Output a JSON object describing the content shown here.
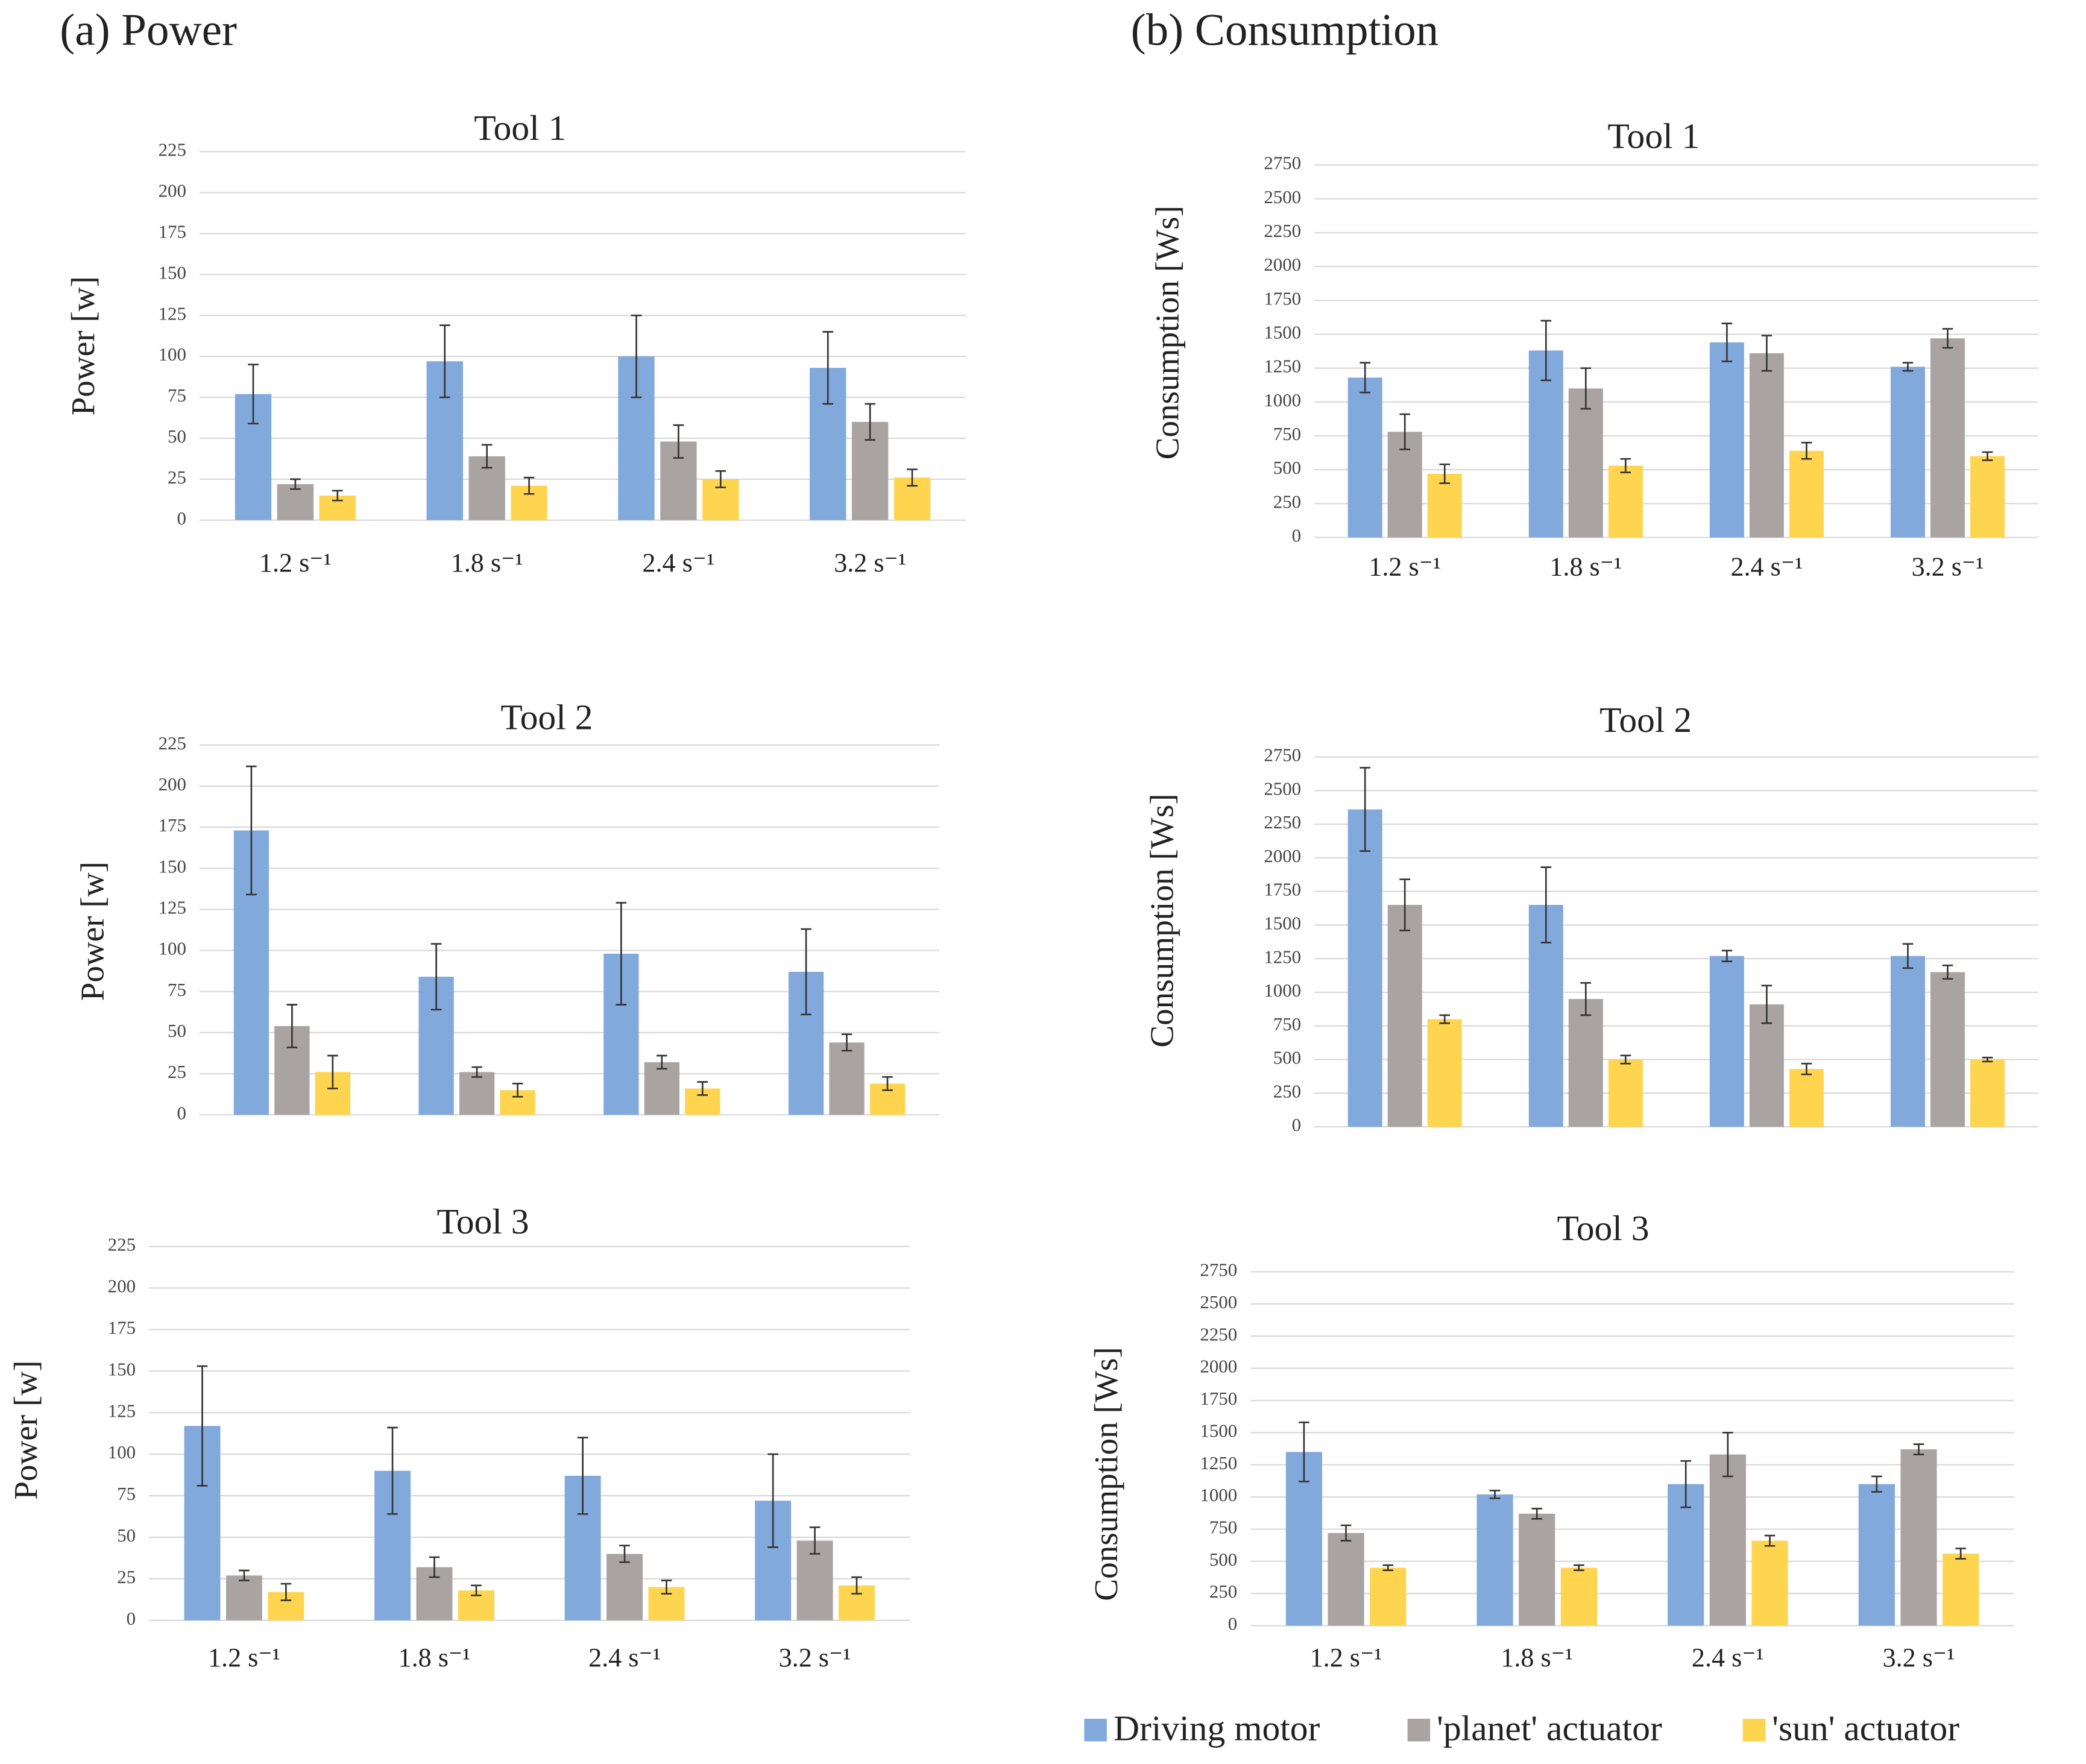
{
  "headings": [
    "(a) Power",
    "(b) Consumption"
  ],
  "chart_data": [
    {
      "type": "bar",
      "title": "Tool 1",
      "y_label": "Power [w]",
      "categories": [
        "1.2 s⁻¹",
        "1.8 s⁻¹",
        "2.4 s⁻¹",
        "3.2 s⁻¹"
      ],
      "ylim": [
        0,
        225
      ],
      "yticks": [
        0,
        25,
        50,
        75,
        100,
        125,
        150,
        175,
        200,
        225
      ],
      "grid": true,
      "series": [
        {
          "color": "#82a9db",
          "values": [
            77,
            97,
            100,
            93
          ],
          "errors": [
            18,
            22,
            25,
            22
          ]
        },
        {
          "color": "#a9a4a1",
          "values": [
            22,
            39,
            48,
            60
          ],
          "errors": [
            3,
            7,
            10,
            11
          ]
        },
        {
          "color": "#ffd44f",
          "values": [
            15,
            21,
            25,
            26
          ],
          "errors": [
            3,
            5,
            5,
            5
          ]
        }
      ]
    },
    {
      "type": "bar",
      "title": "Tool 2",
      "y_label": "Power [w]",
      "categories": [
        null,
        null,
        null,
        null
      ],
      "ylim": [
        0,
        225
      ],
      "yticks": [
        0,
        25,
        50,
        75,
        100,
        125,
        150,
        175,
        200,
        225
      ],
      "grid": true,
      "series": [
        {
          "color": "#82a9db",
          "values": [
            173,
            84,
            98,
            87
          ],
          "errors": [
            39,
            20,
            31,
            26
          ]
        },
        {
          "color": "#a9a4a1",
          "values": [
            54,
            26,
            32,
            44
          ],
          "errors": [
            13,
            3,
            4,
            5
          ]
        },
        {
          "color": "#ffd44f",
          "values": [
            26,
            15,
            16,
            19
          ],
          "errors": [
            10,
            4,
            4,
            4
          ]
        }
      ]
    },
    {
      "type": "bar",
      "title": "Tool 3",
      "y_label": "Power [w]",
      "categories": [
        "1.2 s⁻¹",
        "1.8 s⁻¹",
        "2.4 s⁻¹",
        "3.2 s⁻¹"
      ],
      "ylim": [
        0,
        225
      ],
      "yticks": [
        0,
        25,
        50,
        75,
        100,
        125,
        150,
        175,
        200,
        225
      ],
      "grid": true,
      "series": [
        {
          "color": "#82a9db",
          "values": [
            117,
            90,
            87,
            72
          ],
          "errors": [
            36,
            26,
            23,
            28
          ]
        },
        {
          "color": "#a9a4a1",
          "values": [
            27,
            32,
            40,
            48
          ],
          "errors": [
            3,
            6,
            5,
            8
          ]
        },
        {
          "color": "#ffd44f",
          "values": [
            17,
            18,
            20,
            21
          ],
          "errors": [
            5,
            3,
            4,
            5
          ]
        }
      ]
    },
    {
      "type": "bar",
      "title": "Tool 1",
      "y_label": "Consumption [Ws]",
      "categories": [
        "1.2 s⁻¹",
        "1.8 s⁻¹",
        "2.4 s⁻¹",
        "3.2 s⁻¹"
      ],
      "ylim": [
        0,
        2750
      ],
      "yticks": [
        0,
        250,
        500,
        750,
        1000,
        1250,
        1500,
        1750,
        2000,
        2250,
        2500,
        2750
      ],
      "grid": true,
      "series": [
        {
          "color": "#82a9db",
          "values": [
            1180,
            1380,
            1440,
            1260
          ],
          "errors": [
            110,
            220,
            140,
            30
          ]
        },
        {
          "color": "#a9a4a1",
          "values": [
            780,
            1100,
            1360,
            1470
          ],
          "errors": [
            130,
            150,
            130,
            70
          ]
        },
        {
          "color": "#ffd44f",
          "values": [
            470,
            530,
            640,
            600
          ],
          "errors": [
            70,
            50,
            60,
            30
          ]
        }
      ]
    },
    {
      "type": "bar",
      "title": "Tool 2",
      "y_label": "Consumption [Ws]",
      "categories": [
        null,
        null,
        null,
        null
      ],
      "ylim": [
        0,
        2750
      ],
      "yticks": [
        0,
        250,
        500,
        750,
        1000,
        1250,
        1500,
        1750,
        2000,
        2250,
        2500,
        2750
      ],
      "grid": true,
      "series": [
        {
          "color": "#82a9db",
          "values": [
            2360,
            1650,
            1270,
            1270
          ],
          "errors": [
            310,
            280,
            40,
            90
          ]
        },
        {
          "color": "#a9a4a1",
          "values": [
            1650,
            950,
            910,
            1150
          ],
          "errors": [
            190,
            120,
            140,
            50
          ]
        },
        {
          "color": "#ffd44f",
          "values": [
            800,
            500,
            430,
            500
          ],
          "errors": [
            30,
            30,
            40,
            15
          ]
        }
      ]
    },
    {
      "type": "bar",
      "title": "Tool 3",
      "y_label": "Consumption [Ws]",
      "categories": [
        "1.2 s⁻¹",
        "1.8 s⁻¹",
        "2.4 s⁻¹",
        "3.2 s⁻¹"
      ],
      "ylim": [
        0,
        2750
      ],
      "yticks": [
        0,
        250,
        500,
        750,
        1000,
        1250,
        1500,
        1750,
        2000,
        2250,
        2500,
        2750
      ],
      "grid": true,
      "series": [
        {
          "name": "Driving motor",
          "color": "#82a9db",
          "values": [
            1350,
            1020,
            1100,
            1100
          ],
          "errors": [
            230,
            30,
            180,
            60
          ]
        },
        {
          "name": "'planet' actuator",
          "color": "#a9a4a1",
          "values": [
            720,
            870,
            1330,
            1370
          ],
          "errors": [
            60,
            40,
            170,
            40
          ]
        },
        {
          "name": "'sun' actuator",
          "color": "#ffd44f",
          "values": [
            450,
            450,
            660,
            560
          ],
          "errors": [
            20,
            20,
            40,
            40
          ]
        }
      ]
    }
  ]
}
